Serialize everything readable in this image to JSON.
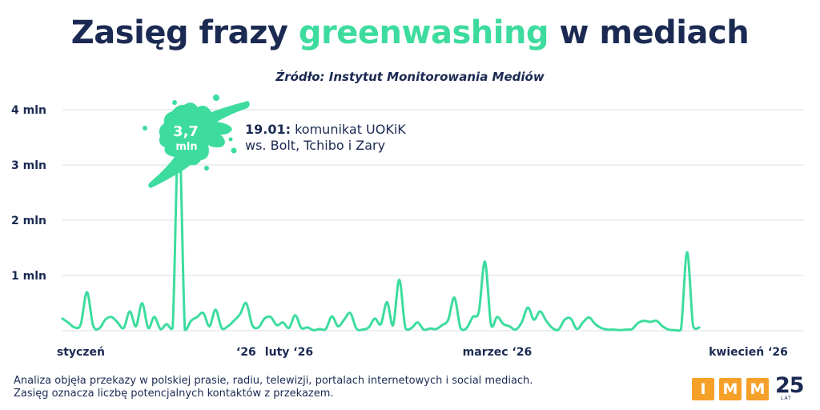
{
  "header": {
    "title_part1": "Zasięg frazy ",
    "title_accent": "greenwashing",
    "title_part2": " w mediach",
    "subtitle": "Źródło: Instytut Monitorowania Mediów"
  },
  "footnote": {
    "line1": "Analiza objęła przekazy w polskiej prasie, radiu, telewizji, portalach internetowych i social mediach.",
    "line2": "Zasięg oznacza liczbę potencjalnych kontaktów z przekazem."
  },
  "logo": {
    "letters": [
      "I",
      "M",
      "M"
    ],
    "number": "25",
    "sub": "LAT"
  },
  "colors": {
    "navy": "#1b2a52",
    "line": "#3ddc9e",
    "grid": "#d9dee7",
    "logo_orange": "#f5a028"
  },
  "chart_data": {
    "type": "line",
    "title": "Zasięg frazy greenwashing w mediach",
    "ylabel": "",
    "xlabel": "",
    "ylim": [
      0,
      4
    ],
    "y_unit": "mln",
    "y_ticks": [
      {
        "value": 1,
        "label": "1 mln"
      },
      {
        "value": 2,
        "label": "2 mln"
      },
      {
        "value": 3,
        "label": "3 mln"
      },
      {
        "value": 4,
        "label": "4 mln"
      }
    ],
    "grid": true,
    "x_start": "2026-01-01",
    "x_end": "2026-04-30",
    "x_tick_labels": [
      {
        "date": "2026-01-04",
        "label": "styczeń"
      },
      {
        "date": "2026-01-31",
        "label": "‘26"
      },
      {
        "date": "2026-02-07",
        "label": "luty ‘26"
      },
      {
        "date": "2026-03-13",
        "label": "marzec ‘26"
      },
      {
        "date": "2026-04-23",
        "label": "kwiecień ‘26"
      }
    ],
    "series": [
      {
        "values": [
          {
            "date": "2026-01-01",
            "value": 0.22
          },
          {
            "date": "2026-01-02",
            "value": 0.14
          },
          {
            "date": "2026-01-03",
            "value": 0.06
          },
          {
            "date": "2026-01-04",
            "value": 0.12
          },
          {
            "date": "2026-01-05",
            "value": 0.7
          },
          {
            "date": "2026-01-06",
            "value": 0.1
          },
          {
            "date": "2026-01-07",
            "value": 0.04
          },
          {
            "date": "2026-01-08",
            "value": 0.2
          },
          {
            "date": "2026-01-09",
            "value": 0.25
          },
          {
            "date": "2026-01-10",
            "value": 0.15
          },
          {
            "date": "2026-01-11",
            "value": 0.05
          },
          {
            "date": "2026-01-12",
            "value": 0.35
          },
          {
            "date": "2026-01-13",
            "value": 0.08
          },
          {
            "date": "2026-01-14",
            "value": 0.5
          },
          {
            "date": "2026-01-15",
            "value": 0.05
          },
          {
            "date": "2026-01-16",
            "value": 0.25
          },
          {
            "date": "2026-01-17",
            "value": 0.03
          },
          {
            "date": "2026-01-18",
            "value": 0.12
          },
          {
            "date": "2026-01-19",
            "value": 0.05
          },
          {
            "date": "2026-01-20",
            "value": 3.7
          },
          {
            "date": "2026-01-21",
            "value": 0.02
          },
          {
            "date": "2026-01-22",
            "value": 0.18
          },
          {
            "date": "2026-01-23",
            "value": 0.25
          },
          {
            "date": "2026-01-24",
            "value": 0.32
          },
          {
            "date": "2026-01-25",
            "value": 0.08
          },
          {
            "date": "2026-01-26",
            "value": 0.38
          },
          {
            "date": "2026-01-27",
            "value": 0.05
          },
          {
            "date": "2026-01-28",
            "value": 0.08
          },
          {
            "date": "2026-01-29",
            "value": 0.18
          },
          {
            "date": "2026-01-30",
            "value": 0.3
          },
          {
            "date": "2026-01-31",
            "value": 0.5
          },
          {
            "date": "2026-02-01",
            "value": 0.1
          },
          {
            "date": "2026-02-02",
            "value": 0.06
          },
          {
            "date": "2026-02-03",
            "value": 0.22
          },
          {
            "date": "2026-02-04",
            "value": 0.25
          },
          {
            "date": "2026-02-05",
            "value": 0.1
          },
          {
            "date": "2026-02-06",
            "value": 0.15
          },
          {
            "date": "2026-02-07",
            "value": 0.05
          },
          {
            "date": "2026-02-08",
            "value": 0.28
          },
          {
            "date": "2026-02-09",
            "value": 0.05
          },
          {
            "date": "2026-02-10",
            "value": 0.06
          },
          {
            "date": "2026-02-11",
            "value": 0.01
          },
          {
            "date": "2026-02-12",
            "value": 0.03
          },
          {
            "date": "2026-02-13",
            "value": 0.03
          },
          {
            "date": "2026-02-14",
            "value": 0.26
          },
          {
            "date": "2026-02-15",
            "value": 0.08
          },
          {
            "date": "2026-02-16",
            "value": 0.2
          },
          {
            "date": "2026-02-17",
            "value": 0.32
          },
          {
            "date": "2026-02-18",
            "value": 0.04
          },
          {
            "date": "2026-02-19",
            "value": 0.02
          },
          {
            "date": "2026-02-20",
            "value": 0.06
          },
          {
            "date": "2026-02-21",
            "value": 0.22
          },
          {
            "date": "2026-02-22",
            "value": 0.12
          },
          {
            "date": "2026-02-23",
            "value": 0.52
          },
          {
            "date": "2026-02-24",
            "value": 0.1
          },
          {
            "date": "2026-02-25",
            "value": 0.92
          },
          {
            "date": "2026-02-26",
            "value": 0.05
          },
          {
            "date": "2026-02-27",
            "value": 0.05
          },
          {
            "date": "2026-02-28",
            "value": 0.15
          },
          {
            "date": "2026-03-01",
            "value": 0.02
          },
          {
            "date": "2026-03-02",
            "value": 0.04
          },
          {
            "date": "2026-03-03",
            "value": 0.03
          },
          {
            "date": "2026-03-04",
            "value": 0.1
          },
          {
            "date": "2026-03-05",
            "value": 0.2
          },
          {
            "date": "2026-03-06",
            "value": 0.6
          },
          {
            "date": "2026-03-07",
            "value": 0.05
          },
          {
            "date": "2026-03-08",
            "value": 0.05
          },
          {
            "date": "2026-03-09",
            "value": 0.25
          },
          {
            "date": "2026-03-10",
            "value": 0.35
          },
          {
            "date": "2026-03-11",
            "value": 1.25
          },
          {
            "date": "2026-03-12",
            "value": 0.1
          },
          {
            "date": "2026-03-13",
            "value": 0.25
          },
          {
            "date": "2026-03-14",
            "value": 0.12
          },
          {
            "date": "2026-03-15",
            "value": 0.08
          },
          {
            "date": "2026-03-16",
            "value": 0.02
          },
          {
            "date": "2026-03-17",
            "value": 0.15
          },
          {
            "date": "2026-03-18",
            "value": 0.42
          },
          {
            "date": "2026-03-19",
            "value": 0.2
          },
          {
            "date": "2026-03-20",
            "value": 0.35
          },
          {
            "date": "2026-03-21",
            "value": 0.18
          },
          {
            "date": "2026-03-22",
            "value": 0.05
          },
          {
            "date": "2026-03-23",
            "value": 0.02
          },
          {
            "date": "2026-03-24",
            "value": 0.2
          },
          {
            "date": "2026-03-25",
            "value": 0.22
          },
          {
            "date": "2026-03-26",
            "value": 0.03
          },
          {
            "date": "2026-03-27",
            "value": 0.15
          },
          {
            "date": "2026-03-28",
            "value": 0.24
          },
          {
            "date": "2026-03-29",
            "value": 0.12
          },
          {
            "date": "2026-03-30",
            "value": 0.05
          },
          {
            "date": "2026-03-31",
            "value": 0.02
          },
          {
            "date": "2026-04-01",
            "value": 0.02
          },
          {
            "date": "2026-04-02",
            "value": 0.01
          },
          {
            "date": "2026-04-03",
            "value": 0.02
          },
          {
            "date": "2026-04-04",
            "value": 0.03
          },
          {
            "date": "2026-04-05",
            "value": 0.14
          },
          {
            "date": "2026-04-06",
            "value": 0.18
          },
          {
            "date": "2026-04-07",
            "value": 0.16
          },
          {
            "date": "2026-04-08",
            "value": 0.18
          },
          {
            "date": "2026-04-09",
            "value": 0.08
          },
          {
            "date": "2026-04-10",
            "value": 0.02
          },
          {
            "date": "2026-04-11",
            "value": 0.01
          },
          {
            "date": "2026-04-12",
            "value": 0.02
          },
          {
            "date": "2026-04-13",
            "value": 1.42
          },
          {
            "date": "2026-04-14",
            "value": 0.08
          },
          {
            "date": "2026-04-15",
            "value": 0.06
          }
        ]
      }
    ],
    "annotations": [
      {
        "date": "2026-01-20",
        "value_label_num": "3,7",
        "value_label_unit": "mln",
        "note_bold": "19.01:",
        "note_line1": " komunikat UOKiK",
        "note_line2": "ws. Bolt, Tchibo i Zary"
      }
    ]
  }
}
